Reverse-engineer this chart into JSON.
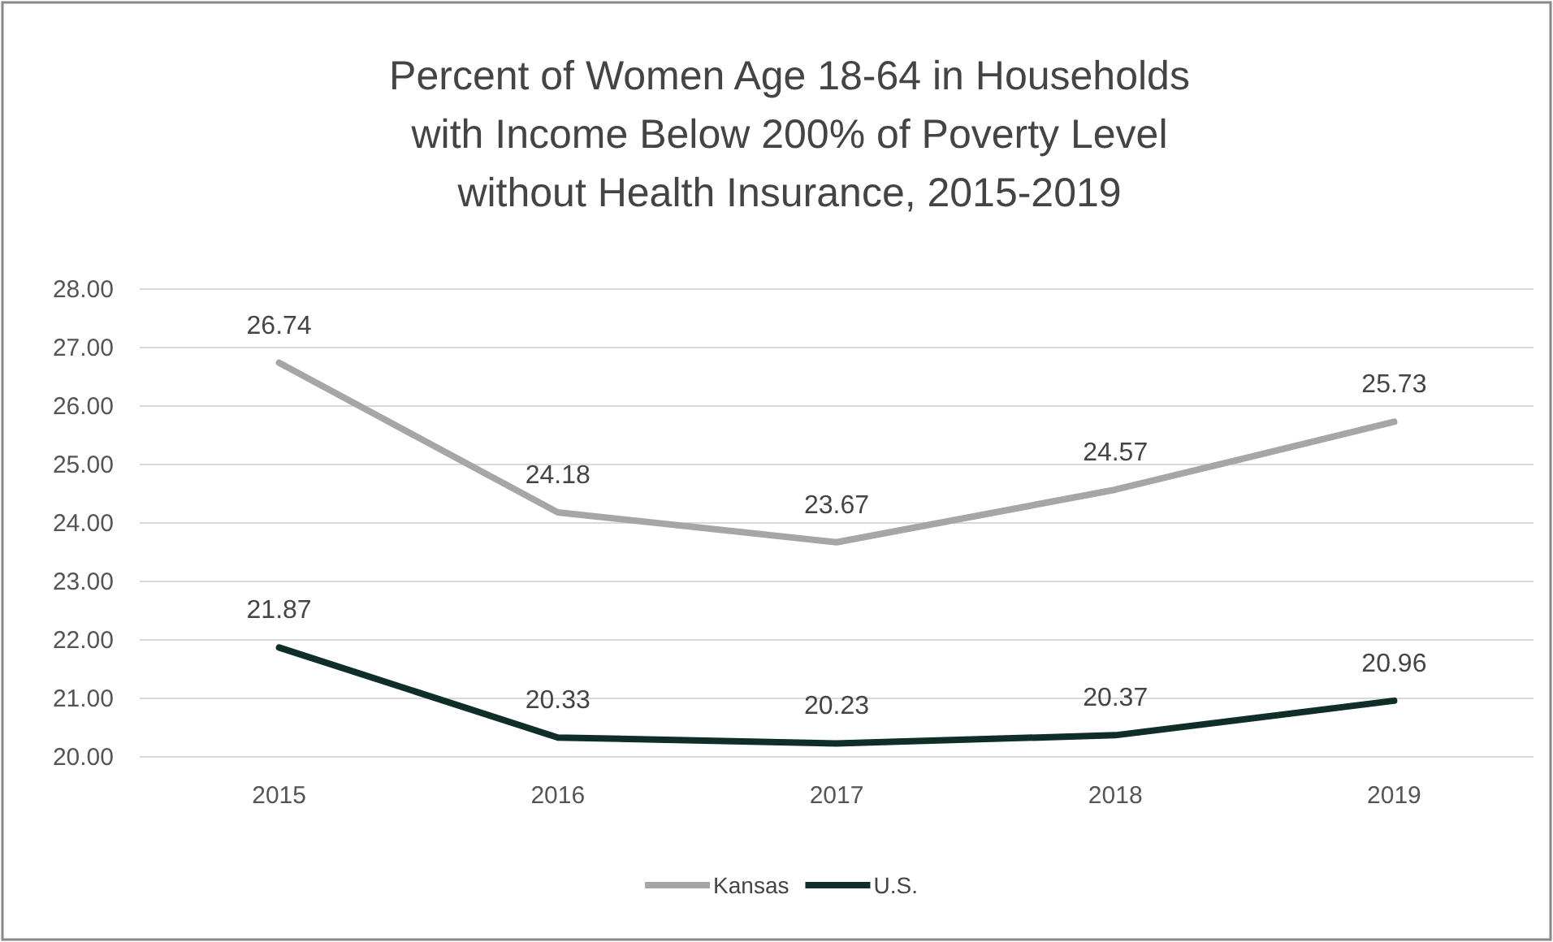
{
  "chart_data": {
    "type": "line",
    "title": "Percent of Women Age 18-64 in Households\nwith Income Below 200% of Poverty Level\nwithout Health Insurance, 2015-2019",
    "categories": [
      "2015",
      "2016",
      "2017",
      "2018",
      "2019"
    ],
    "series": [
      {
        "name": "Kansas",
        "color": "#a6a6a6",
        "values": [
          26.74,
          24.18,
          23.67,
          24.57,
          25.73
        ]
      },
      {
        "name": "U.S.",
        "color": "#0f2d29",
        "values": [
          21.87,
          20.33,
          20.23,
          20.37,
          20.96
        ]
      }
    ],
    "ylim": [
      20,
      28
    ],
    "yticks": [
      {
        "value": 20,
        "label": "20.00"
      },
      {
        "value": 21,
        "label": "21.00"
      },
      {
        "value": 22,
        "label": "22.00"
      },
      {
        "value": 23,
        "label": "23.00"
      },
      {
        "value": 24,
        "label": "24.00"
      },
      {
        "value": 25,
        "label": "25.00"
      },
      {
        "value": 26,
        "label": "26.00"
      },
      {
        "value": 27,
        "label": "27.00"
      },
      {
        "value": 28,
        "label": "28.00"
      }
    ],
    "grid": "y",
    "legend": "bottom",
    "data_labels": true,
    "marker": "none",
    "line_style": "solid"
  }
}
